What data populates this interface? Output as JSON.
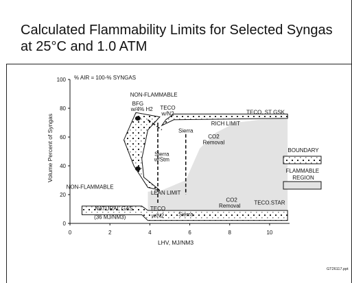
{
  "slide": {
    "title": "Calculated Flammability Limits for Selected Syngas at 25°C and 1.0 ATM",
    "footer_code": "GT26117.ppt"
  },
  "chart_data": {
    "type": "area",
    "title": "",
    "xlabel": "LHV, MJ/NM3",
    "ylabel": "Volume Percent of Syngas",
    "xlim": [
      0,
      11
    ],
    "ylim": [
      0,
      100
    ],
    "xticks": [
      0,
      2,
      4,
      6,
      8,
      10
    ],
    "yticks": [
      0,
      20,
      40,
      60,
      80,
      100
    ],
    "grid": false,
    "corner_note": "% AIR = 100-% SYNGAS",
    "legend": {
      "placement": "right",
      "entries": [
        {
          "label": "BOUNDARY",
          "style": "dotted-box"
        },
        {
          "label": "FLAMMABLE REGION",
          "style": "gray-fill"
        }
      ]
    },
    "flammable_region": {
      "points": [
        [
          3.9,
          22
        ],
        [
          4.6,
          23
        ],
        [
          5.8,
          30
        ],
        [
          6.5,
          52
        ],
        [
          7.3,
          63
        ],
        [
          8.3,
          70
        ],
        [
          9.5,
          72
        ],
        [
          10.9,
          73
        ],
        [
          10.9,
          6
        ],
        [
          3.9,
          6
        ]
      ]
    },
    "rich_limit_band": {
      "points": [
        [
          4.6,
          68
        ],
        [
          5.2,
          72
        ],
        [
          10.9,
          73
        ],
        [
          10.9,
          76
        ],
        [
          5.2,
          76
        ],
        [
          4.8,
          72
        ]
      ]
    },
    "lean_limit_band": {
      "points": [
        [
          0.6,
          12
        ],
        [
          3.6,
          12
        ],
        [
          3.9,
          9
        ],
        [
          10.9,
          9
        ],
        [
          10.9,
          2
        ],
        [
          3.9,
          2
        ],
        [
          3.6,
          6
        ],
        [
          0.6,
          6
        ]
      ]
    },
    "left_boundary_band": {
      "points": [
        [
          3.3,
          77
        ],
        [
          2.7,
          58
        ],
        [
          3.2,
          40
        ],
        [
          3.9,
          25
        ],
        [
          4.5,
          23
        ],
        [
          3.7,
          32
        ],
        [
          3.6,
          45
        ],
        [
          3.9,
          65
        ],
        [
          4.5,
          74
        ]
      ]
    },
    "limit_lines": [
      {
        "label": "BFG w/4% H2",
        "points": [
          [
            3.9,
            72
          ],
          [
            4.6,
            65
          ]
        ]
      },
      {
        "label": "Sierra w/Stm",
        "points": [
          [
            4.4,
            70
          ],
          [
            4.4,
            14
          ]
        ]
      },
      {
        "label": "Sierra",
        "points": [
          [
            5.8,
            62
          ],
          [
            5.8,
            20
          ]
        ]
      }
    ],
    "markers": [
      {
        "label": "BFG",
        "x": 3.4,
        "y": 73
      },
      {
        "label": "",
        "x": 3.4,
        "y": 38
      }
    ],
    "annotations": [
      {
        "text": "NON-FLAMMABLE",
        "x": 4.2,
        "y": 88
      },
      {
        "text": "BFG",
        "x": 3.4,
        "y": 82
      },
      {
        "text": "w/4% H2",
        "x": 3.6,
        "y": 78
      },
      {
        "text": "TECO",
        "x": 4.9,
        "y": 79
      },
      {
        "text": "w/N2",
        "x": 4.9,
        "y": 75
      },
      {
        "text": "TECO, ST GSK",
        "x": 9.8,
        "y": 76
      },
      {
        "text": "RICH LIMIT",
        "x": 7.8,
        "y": 68
      },
      {
        "text": "Sierra",
        "x": 5.8,
        "y": 63
      },
      {
        "text": "CO2",
        "x": 7.2,
        "y": 59
      },
      {
        "text": "Removal",
        "x": 7.2,
        "y": 55
      },
      {
        "text": "Sierra",
        "x": 4.6,
        "y": 47
      },
      {
        "text": "w/Stm",
        "x": 4.6,
        "y": 43
      },
      {
        "text": "NON-FLAMMABLE",
        "x": 1.0,
        "y": 24
      },
      {
        "text": "LEAN LIMIT",
        "x": 4.8,
        "y": 20
      },
      {
        "text": "CO2",
        "x": 8.1,
        "y": 15
      },
      {
        "text": "Removal",
        "x": 8.0,
        "y": 11
      },
      {
        "text": "TECO.STAR",
        "x": 10.0,
        "y": 13
      },
      {
        "text": "NATURAL GAS",
        "x": 2.2,
        "y": 9
      },
      {
        "text": "(36 MJ/NM3)",
        "x": 2.0,
        "y": 3
      },
      {
        "text": "TECO",
        "x": 4.4,
        "y": 9
      },
      {
        "text": "w/N2",
        "x": 4.4,
        "y": 4
      },
      {
        "text": "Sierra",
        "x": 5.8,
        "y": 5
      }
    ]
  }
}
